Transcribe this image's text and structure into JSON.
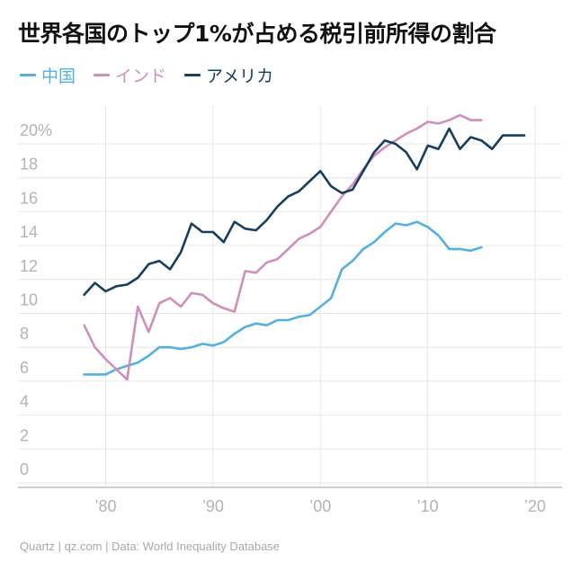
{
  "title": "世界各国のトップ1%が占める税引前所得の割合",
  "footer": "Quartz | qz.com | Data: World Inequality Database",
  "colors": {
    "china": "#54b0e0",
    "india": "#cf8fbb",
    "usa": "#173e5e",
    "grid": "#e6e6e6",
    "axis": "#bdbdbd"
  },
  "chart_data": {
    "type": "line",
    "title": "世界各国のトップ1%が占める税引前所得の割合",
    "xlabel": "",
    "ylabel": "",
    "xlim": [
      1972,
      2021
    ],
    "ylim": [
      0,
      22
    ],
    "yticks": [
      {
        "value": 0,
        "label": "0"
      },
      {
        "value": 2,
        "label": "2"
      },
      {
        "value": 4,
        "label": "4"
      },
      {
        "value": 6,
        "label": "6"
      },
      {
        "value": 8,
        "label": "8"
      },
      {
        "value": 10,
        "label": "10"
      },
      {
        "value": 12,
        "label": "12"
      },
      {
        "value": 14,
        "label": "14"
      },
      {
        "value": 16,
        "label": "16"
      },
      {
        "value": 18,
        "label": "18"
      },
      {
        "value": 20,
        "label": "20%"
      }
    ],
    "xticks": [
      {
        "value": 1980,
        "label": "’80"
      },
      {
        "value": 1990,
        "label": "’90"
      },
      {
        "value": 2000,
        "label": "’00"
      },
      {
        "value": 2010,
        "label": "’10"
      },
      {
        "value": 2020,
        "label": "’20"
      }
    ],
    "grid": true,
    "legend_position": "top-left",
    "series": [
      {
        "key": "china",
        "name": "中国",
        "color": "#54b0e0",
        "x": [
          1978,
          1979,
          1980,
          1981,
          1982,
          1983,
          1984,
          1985,
          1986,
          1987,
          1988,
          1989,
          1990,
          1991,
          1992,
          1993,
          1994,
          1995,
          1996,
          1997,
          1998,
          1999,
          2000,
          2001,
          2002,
          2003,
          2004,
          2005,
          2006,
          2007,
          2008,
          2009,
          2010,
          2011,
          2012,
          2013,
          2014,
          2015
        ],
        "y": [
          6.4,
          6.4,
          6.4,
          6.7,
          6.9,
          7.1,
          7.5,
          8.0,
          8.0,
          7.9,
          8.0,
          8.2,
          8.1,
          8.3,
          8.8,
          9.2,
          9.4,
          9.3,
          9.6,
          9.6,
          9.8,
          9.9,
          10.4,
          10.9,
          12.6,
          13.1,
          13.8,
          14.2,
          14.8,
          15.3,
          15.2,
          15.4,
          15.1,
          14.6,
          13.8,
          13.8,
          13.7,
          13.9
        ]
      },
      {
        "key": "india",
        "name": "インド",
        "color": "#cf8fbb",
        "x": [
          1978,
          1979,
          1980,
          1981,
          1982,
          1983,
          1984,
          1985,
          1986,
          1987,
          1988,
          1989,
          1990,
          1991,
          1992,
          1993,
          1994,
          1995,
          1996,
          1997,
          1998,
          1999,
          2000,
          2001,
          2002,
          2003,
          2004,
          2005,
          2006,
          2007,
          2008,
          2009,
          2010,
          2011,
          2012,
          2013,
          2014,
          2015
        ],
        "y": [
          9.3,
          8.0,
          7.3,
          6.7,
          6.1,
          10.4,
          8.9,
          10.6,
          10.9,
          10.4,
          11.2,
          11.1,
          10.6,
          10.3,
          10.1,
          12.5,
          12.4,
          13.0,
          13.2,
          13.8,
          14.4,
          14.7,
          15.1,
          16.0,
          16.9,
          17.6,
          18.5,
          19.3,
          19.8,
          20.2,
          20.6,
          20.9,
          21.3,
          21.2,
          21.4,
          21.7,
          21.4,
          21.4
        ]
      },
      {
        "key": "usa",
        "name": "アメリカ",
        "color": "#173e5e",
        "x": [
          1978,
          1979,
          1980,
          1981,
          1982,
          1983,
          1984,
          1985,
          1986,
          1987,
          1988,
          1989,
          1990,
          1991,
          1992,
          1993,
          1994,
          1995,
          1996,
          1997,
          1998,
          1999,
          2000,
          2001,
          2002,
          2003,
          2004,
          2005,
          2006,
          2007,
          2008,
          2009,
          2010,
          2011,
          2012,
          2013,
          2014,
          2015,
          2016,
          2017,
          2018,
          2019
        ],
        "y": [
          11.1,
          11.8,
          11.3,
          11.6,
          11.7,
          12.1,
          12.9,
          13.1,
          12.6,
          13.6,
          15.3,
          14.8,
          14.8,
          14.2,
          15.4,
          15.0,
          14.9,
          15.5,
          16.3,
          16.9,
          17.2,
          17.8,
          18.4,
          17.5,
          17.1,
          17.3,
          18.4,
          19.5,
          20.2,
          20.0,
          19.5,
          18.5,
          19.9,
          19.7,
          20.9,
          19.7,
          20.4,
          20.2,
          19.7,
          20.5,
          20.5,
          20.5
        ]
      }
    ]
  }
}
